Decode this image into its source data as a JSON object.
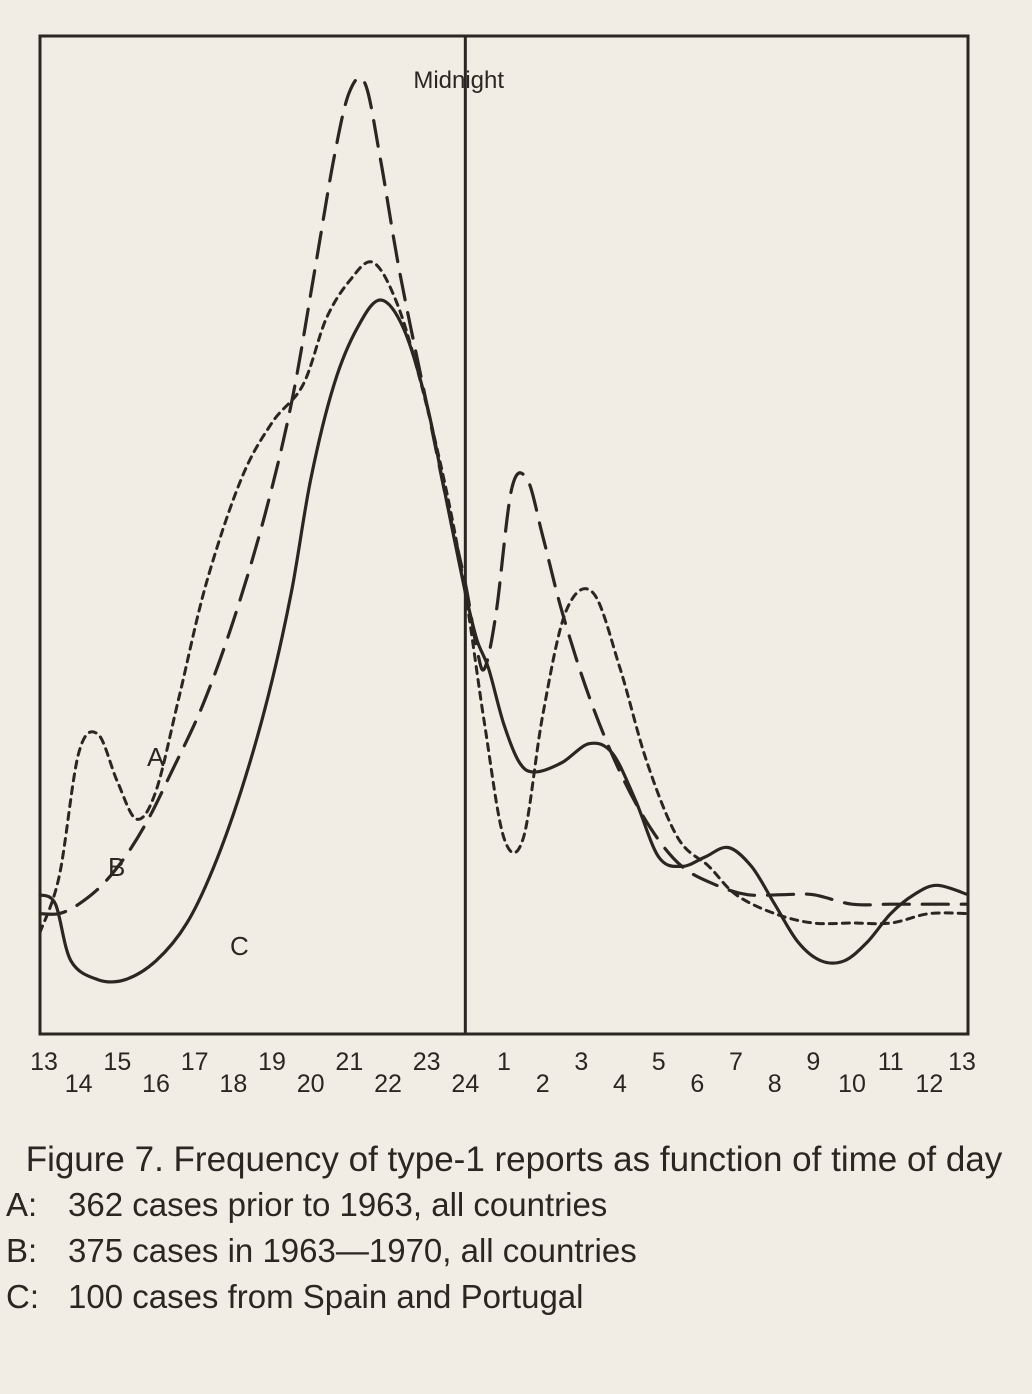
{
  "chart_data": {
    "type": "line",
    "midnight_label": "Midnight",
    "x_tick_labels": [
      "13",
      "14",
      "15",
      "16",
      "17",
      "18",
      "19",
      "20",
      "21",
      "22",
      "23",
      "24",
      "1",
      "2",
      "3",
      "4",
      "5",
      "6",
      "7",
      "8",
      "9",
      "10",
      "11",
      "12",
      "13"
    ],
    "x_range_hours": [
      13,
      37
    ],
    "y_range": [
      0,
      100
    ],
    "y_unit": "relative frequency (unlabeled)",
    "midnight_hour": 24,
    "series": [
      {
        "name": "A",
        "style": "dotted",
        "points": [
          [
            13.0,
            8
          ],
          [
            13.5,
            14
          ],
          [
            14.0,
            27
          ],
          [
            14.5,
            29
          ],
          [
            15.0,
            24
          ],
          [
            15.5,
            20
          ],
          [
            16.0,
            23
          ],
          [
            16.6,
            33
          ],
          [
            17.3,
            45
          ],
          [
            18.2,
            56
          ],
          [
            19.0,
            62
          ],
          [
            19.8,
            66
          ],
          [
            20.4,
            73
          ],
          [
            21.0,
            77
          ],
          [
            21.6,
            79
          ],
          [
            22.2,
            75
          ],
          [
            22.8,
            67
          ],
          [
            23.5,
            55
          ],
          [
            24.0,
            44
          ],
          [
            24.5,
            30
          ],
          [
            25.0,
            18
          ],
          [
            25.5,
            18
          ],
          [
            26.0,
            31
          ],
          [
            26.6,
            42
          ],
          [
            27.3,
            44
          ],
          [
            28.0,
            36
          ],
          [
            28.7,
            26
          ],
          [
            29.5,
            18
          ],
          [
            30.3,
            15
          ],
          [
            31.0,
            12
          ],
          [
            32.0,
            10
          ],
          [
            33.0,
            9
          ],
          [
            34.0,
            9
          ],
          [
            35.0,
            9
          ],
          [
            36.0,
            10
          ],
          [
            37.0,
            10
          ]
        ]
      },
      {
        "name": "B",
        "style": "dashed",
        "points": [
          [
            13.0,
            10
          ],
          [
            13.5,
            10
          ],
          [
            14.0,
            11
          ],
          [
            14.6,
            13
          ],
          [
            15.2,
            16
          ],
          [
            15.8,
            20
          ],
          [
            16.4,
            25
          ],
          [
            17.2,
            32
          ],
          [
            18.0,
            41
          ],
          [
            18.8,
            52
          ],
          [
            19.5,
            64
          ],
          [
            20.1,
            78
          ],
          [
            20.6,
            90
          ],
          [
            21.0,
            97
          ],
          [
            21.4,
            98
          ],
          [
            21.8,
            90
          ],
          [
            22.3,
            78
          ],
          [
            23.0,
            64
          ],
          [
            23.5,
            54
          ],
          [
            24.0,
            45
          ],
          [
            24.3,
            38
          ],
          [
            24.5,
            36
          ],
          [
            24.8,
            42
          ],
          [
            25.2,
            55
          ],
          [
            25.6,
            56
          ],
          [
            26.0,
            50
          ],
          [
            26.5,
            42
          ],
          [
            27.2,
            33
          ],
          [
            28.0,
            25
          ],
          [
            28.8,
            19
          ],
          [
            29.6,
            15
          ],
          [
            30.5,
            13
          ],
          [
            31.3,
            12
          ],
          [
            32.2,
            12
          ],
          [
            33.0,
            12
          ],
          [
            34.0,
            11
          ],
          [
            35.0,
            11
          ],
          [
            36.0,
            11
          ],
          [
            37.0,
            11
          ]
        ]
      },
      {
        "name": "C",
        "style": "solid",
        "points": [
          [
            13.0,
            12
          ],
          [
            13.4,
            11
          ],
          [
            13.8,
            5
          ],
          [
            14.5,
            3
          ],
          [
            15.2,
            3
          ],
          [
            16.0,
            5
          ],
          [
            16.8,
            9
          ],
          [
            17.5,
            15
          ],
          [
            18.2,
            23
          ],
          [
            18.9,
            33
          ],
          [
            19.5,
            44
          ],
          [
            20.0,
            56
          ],
          [
            20.6,
            66
          ],
          [
            21.2,
            72
          ],
          [
            21.8,
            75
          ],
          [
            22.4,
            72
          ],
          [
            23.0,
            64
          ],
          [
            23.5,
            54
          ],
          [
            24.0,
            44
          ],
          [
            24.3,
            39
          ],
          [
            24.6,
            36
          ],
          [
            25.0,
            30
          ],
          [
            25.4,
            26
          ],
          [
            25.8,
            25
          ],
          [
            26.5,
            26
          ],
          [
            27.2,
            28
          ],
          [
            27.8,
            27
          ],
          [
            28.4,
            22
          ],
          [
            29.0,
            16
          ],
          [
            29.6,
            15
          ],
          [
            30.2,
            16
          ],
          [
            30.8,
            17
          ],
          [
            31.4,
            15
          ],
          [
            32.0,
            11
          ],
          [
            32.6,
            7
          ],
          [
            33.2,
            5
          ],
          [
            33.8,
            5
          ],
          [
            34.4,
            7
          ],
          [
            35.0,
            10
          ],
          [
            35.6,
            12
          ],
          [
            36.2,
            13
          ],
          [
            37.0,
            12
          ]
        ]
      }
    ],
    "curve_labels": [
      {
        "text": "A",
        "series": "A"
      },
      {
        "text": "B",
        "series": "B"
      },
      {
        "text": "C",
        "series": "C"
      }
    ]
  },
  "caption": {
    "title": "Figure 7. Frequency of type-1 reports as function of time of day",
    "legend": [
      {
        "key": "A:",
        "text": "362 cases prior to 1963, all countries"
      },
      {
        "key": "B:",
        "text": "375 cases in 1963—1970, all countries"
      },
      {
        "key": "C:",
        "text": "100 cases from Spain and Portugal"
      }
    ]
  },
  "colors": {
    "ink": "#2a2722",
    "paper": "#f1ede4"
  }
}
